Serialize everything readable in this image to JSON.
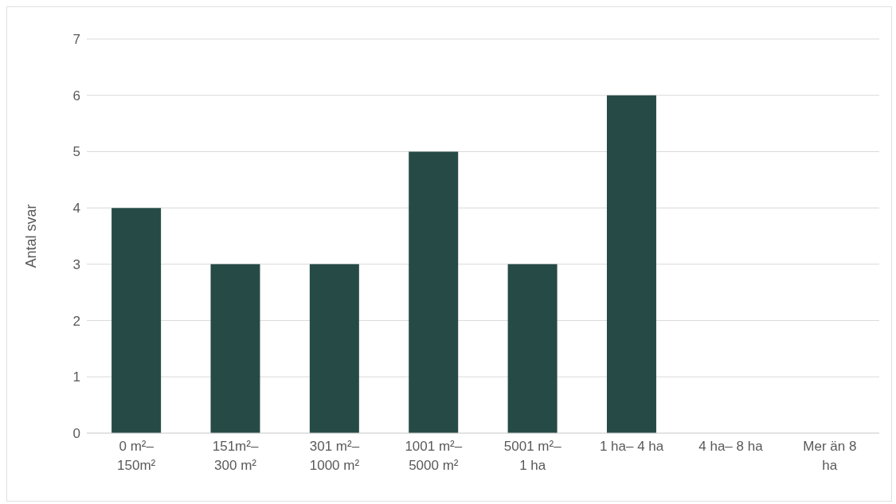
{
  "chart_data": {
    "type": "bar",
    "ylabel": "Antal svar",
    "categories": [
      "0 m²–\n150m²",
      "151m²–\n300 m²",
      "301 m²–\n1000 m²",
      "1001 m²–\n5000 m²",
      "5001 m²–\n1 ha",
      "1 ha– 4 ha",
      "4 ha– 8 ha",
      "Mer än 8\nha"
    ],
    "values": [
      4,
      3,
      3,
      5,
      3,
      6,
      0,
      0
    ],
    "color": "#264b46",
    "ylim": [
      0,
      7
    ],
    "yticks": [
      0,
      1,
      2,
      3,
      4,
      5,
      6,
      7
    ],
    "grid": "y"
  }
}
